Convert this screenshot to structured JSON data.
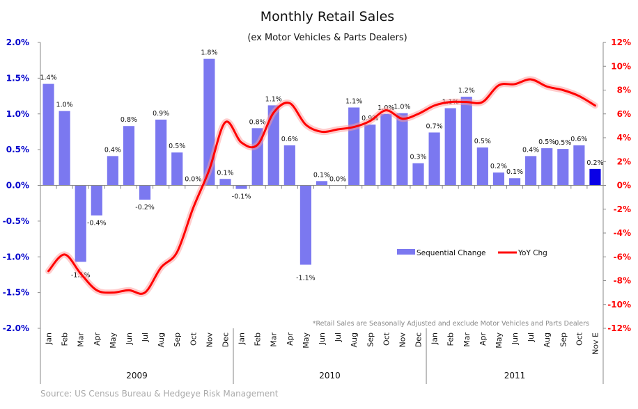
{
  "chart_data": {
    "type": "bar+line",
    "title": "Monthly Retail Sales",
    "subtitle": "(ex Motor Vehicles & Parts Dealers)",
    "categories": [
      "Jan",
      "Feb",
      "Mar",
      "Apr",
      "May",
      "Jun",
      "Jul",
      "Aug",
      "Sep",
      "Oct",
      "Nov",
      "Dec",
      "Jan",
      "Feb",
      "Mar",
      "Apr",
      "May",
      "Jun",
      "Jul",
      "Aug",
      "Sep",
      "Oct",
      "Nov",
      "Dec",
      "Jan",
      "Feb",
      "Mar",
      "Apr",
      "May",
      "Jun",
      "Jul",
      "Aug",
      "Sep",
      "Oct",
      "Nov E"
    ],
    "years": [
      {
        "label": "2009",
        "start": 0,
        "end": 11
      },
      {
        "label": "2010",
        "start": 12,
        "end": 23
      },
      {
        "label": "2011",
        "start": 24,
        "end": 34
      }
    ],
    "series": [
      {
        "name": "Sequential Change",
        "axis": "left",
        "type": "bar",
        "color": "#7b78f0",
        "highlight_last_color": "#0a00e6",
        "values": [
          1.42,
          1.04,
          -1.07,
          -0.42,
          0.41,
          0.83,
          -0.2,
          0.92,
          0.46,
          0.0,
          1.77,
          0.09,
          -0.05,
          0.8,
          1.12,
          0.56,
          -1.11,
          0.06,
          0.0,
          1.09,
          0.85,
          1.0,
          1.01,
          0.31,
          0.74,
          1.08,
          1.24,
          0.53,
          0.18,
          0.1,
          0.41,
          0.52,
          0.51,
          0.56,
          0.23
        ],
        "labels": [
          "1.4%",
          "1.0%",
          "-1.1%",
          "-0.4%",
          "0.4%",
          "0.8%",
          "-0.2%",
          "0.9%",
          "0.5%",
          "0.0%",
          "1.8%",
          "0.1%",
          "-0.1%",
          "0.8%",
          "1.1%",
          "0.6%",
          "-1.1%",
          "0.1%",
          "0.0%",
          "1.1%",
          "0.9%",
          "1.0%",
          "1.0%",
          "0.3%",
          "0.7%",
          "1.1%",
          "1.2%",
          "0.5%",
          "0.2%",
          "0.1%",
          "0.4%",
          "0.5%",
          "0.5%",
          "0.6%",
          "0.2%"
        ]
      },
      {
        "name": "YoY Chg",
        "axis": "right",
        "type": "line",
        "color": "#ff0000",
        "values": [
          -7.2,
          -5.8,
          -7.4,
          -8.8,
          -9.0,
          -8.8,
          -9.0,
          -6.9,
          -5.6,
          -1.9,
          1.3,
          5.3,
          3.6,
          3.4,
          6.1,
          6.9,
          5.1,
          4.5,
          4.7,
          4.9,
          5.4,
          6.3,
          5.6,
          6.0,
          6.7,
          7.0,
          7.0,
          7.0,
          8.4,
          8.5,
          8.9,
          8.3,
          8.0,
          7.5,
          6.7
        ]
      }
    ],
    "left_axis": {
      "ylim": [
        -2.0,
        2.0
      ],
      "ticks": [
        "2.0%",
        "1.5%",
        "1.0%",
        "0.5%",
        "0.0%",
        "-0.5%",
        "-1.0%",
        "-1.5%",
        "-2.0%"
      ],
      "color": "#0000cc"
    },
    "right_axis": {
      "ylim": [
        -12,
        12
      ],
      "ticks": [
        "12%",
        "10%",
        "8%",
        "6%",
        "4%",
        "2%",
        "0%",
        "-2%",
        "-4%",
        "-6%",
        "-8%",
        "-10%",
        "-12%"
      ],
      "color": "#ff0000"
    },
    "legend": "center-right",
    "footnote": "*Retail Sales are Seasonally Adjusted and exclude Motor Vehicles and Parts Dealers",
    "source": "Source: US Census Bureau & Hedgeye Risk Management"
  }
}
